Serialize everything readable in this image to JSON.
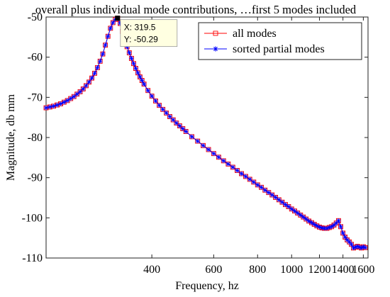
{
  "chart_data": {
    "type": "line",
    "title": "overall plus individual mode contributions, …first 5 modes included",
    "xlabel": "Frequency, hz",
    "ylabel": "Magnitude, db mm",
    "xscale": "log",
    "xlim": [
      200,
      1650
    ],
    "ylim": [
      -110,
      -50
    ],
    "xticks": [
      400,
      600,
      800,
      1000,
      1200,
      1400,
      1600
    ],
    "xtick_labels": [
      "400",
      "600",
      "800",
      "1000",
      "1200",
      "1400",
      "1600"
    ],
    "yticks": [
      -110,
      -100,
      -90,
      -80,
      -70,
      -60,
      -50
    ],
    "ytick_labels": [
      "-110",
      "-100",
      "-90",
      "-80",
      "-70",
      "-60",
      "-50"
    ],
    "grid": false,
    "legend_position": "top-right",
    "series": [
      {
        "name": "all modes",
        "color": "#ff0000",
        "marker": "square"
      },
      {
        "name": "sorted partial modes",
        "color": "#0000ff",
        "marker": "star"
      }
    ],
    "x": [
      200,
      205,
      210,
      215,
      220,
      225,
      230,
      235,
      240,
      245,
      250,
      255,
      260,
      265,
      270,
      275,
      280,
      285,
      290,
      295,
      300,
      305,
      310,
      315,
      319.5,
      325,
      330,
      335,
      340,
      345,
      350,
      355,
      360,
      365,
      370,
      375,
      380,
      390,
      400,
      410,
      420,
      430,
      440,
      450,
      460,
      470,
      480,
      490,
      500,
      520,
      540,
      560,
      580,
      600,
      620,
      640,
      660,
      680,
      700,
      720,
      740,
      760,
      780,
      800,
      820,
      840,
      860,
      880,
      900,
      920,
      940,
      960,
      980,
      1000,
      1020,
      1040,
      1060,
      1080,
      1100,
      1120,
      1140,
      1160,
      1180,
      1200,
      1220,
      1240,
      1260,
      1280,
      1300,
      1320,
      1340,
      1360,
      1380,
      1400,
      1420,
      1440,
      1460,
      1480,
      1500,
      1520,
      1540,
      1560,
      1580,
      1600,
      1620
    ],
    "y": [
      -72.6,
      -72.4,
      -72.2,
      -71.9,
      -71.6,
      -71.2,
      -70.8,
      -70.3,
      -69.8,
      -69.2,
      -68.6,
      -67.9,
      -67.1,
      -66.2,
      -65.2,
      -64.0,
      -62.6,
      -61.0,
      -59.2,
      -57.0,
      -54.8,
      -52.8,
      -51.4,
      -50.6,
      -50.29,
      -51.6,
      -53.6,
      -55.6,
      -57.4,
      -58.9,
      -60.3,
      -61.6,
      -62.8,
      -63.9,
      -64.9,
      -65.8,
      -66.7,
      -68.3,
      -69.7,
      -70.9,
      -72.0,
      -73.0,
      -73.9,
      -74.8,
      -75.6,
      -76.4,
      -77.1,
      -77.8,
      -78.5,
      -79.8,
      -80.9,
      -82.0,
      -83.0,
      -84.0,
      -84.9,
      -85.8,
      -86.6,
      -87.4,
      -88.2,
      -89.0,
      -89.7,
      -90.4,
      -91.1,
      -91.8,
      -92.4,
      -93.1,
      -93.7,
      -94.3,
      -94.9,
      -95.5,
      -96.1,
      -96.7,
      -97.2,
      -97.8,
      -98.3,
      -98.8,
      -99.3,
      -99.8,
      -100.3,
      -100.8,
      -101.2,
      -101.6,
      -102.0,
      -102.3,
      -102.5,
      -102.6,
      -102.6,
      -102.4,
      -102.2,
      -101.8,
      -101.3,
      -100.7,
      -102.2,
      -103.8,
      -104.8,
      -105.5,
      -106.0,
      -106.6,
      -107.5,
      -107.3,
      -107.1,
      -107.3,
      -107.5,
      -107.2,
      -107.4
    ]
  },
  "datatip": {
    "x_label": "X: 319.5",
    "y_label": "Y: -50.29",
    "x": 319.5,
    "y": -50.29
  }
}
